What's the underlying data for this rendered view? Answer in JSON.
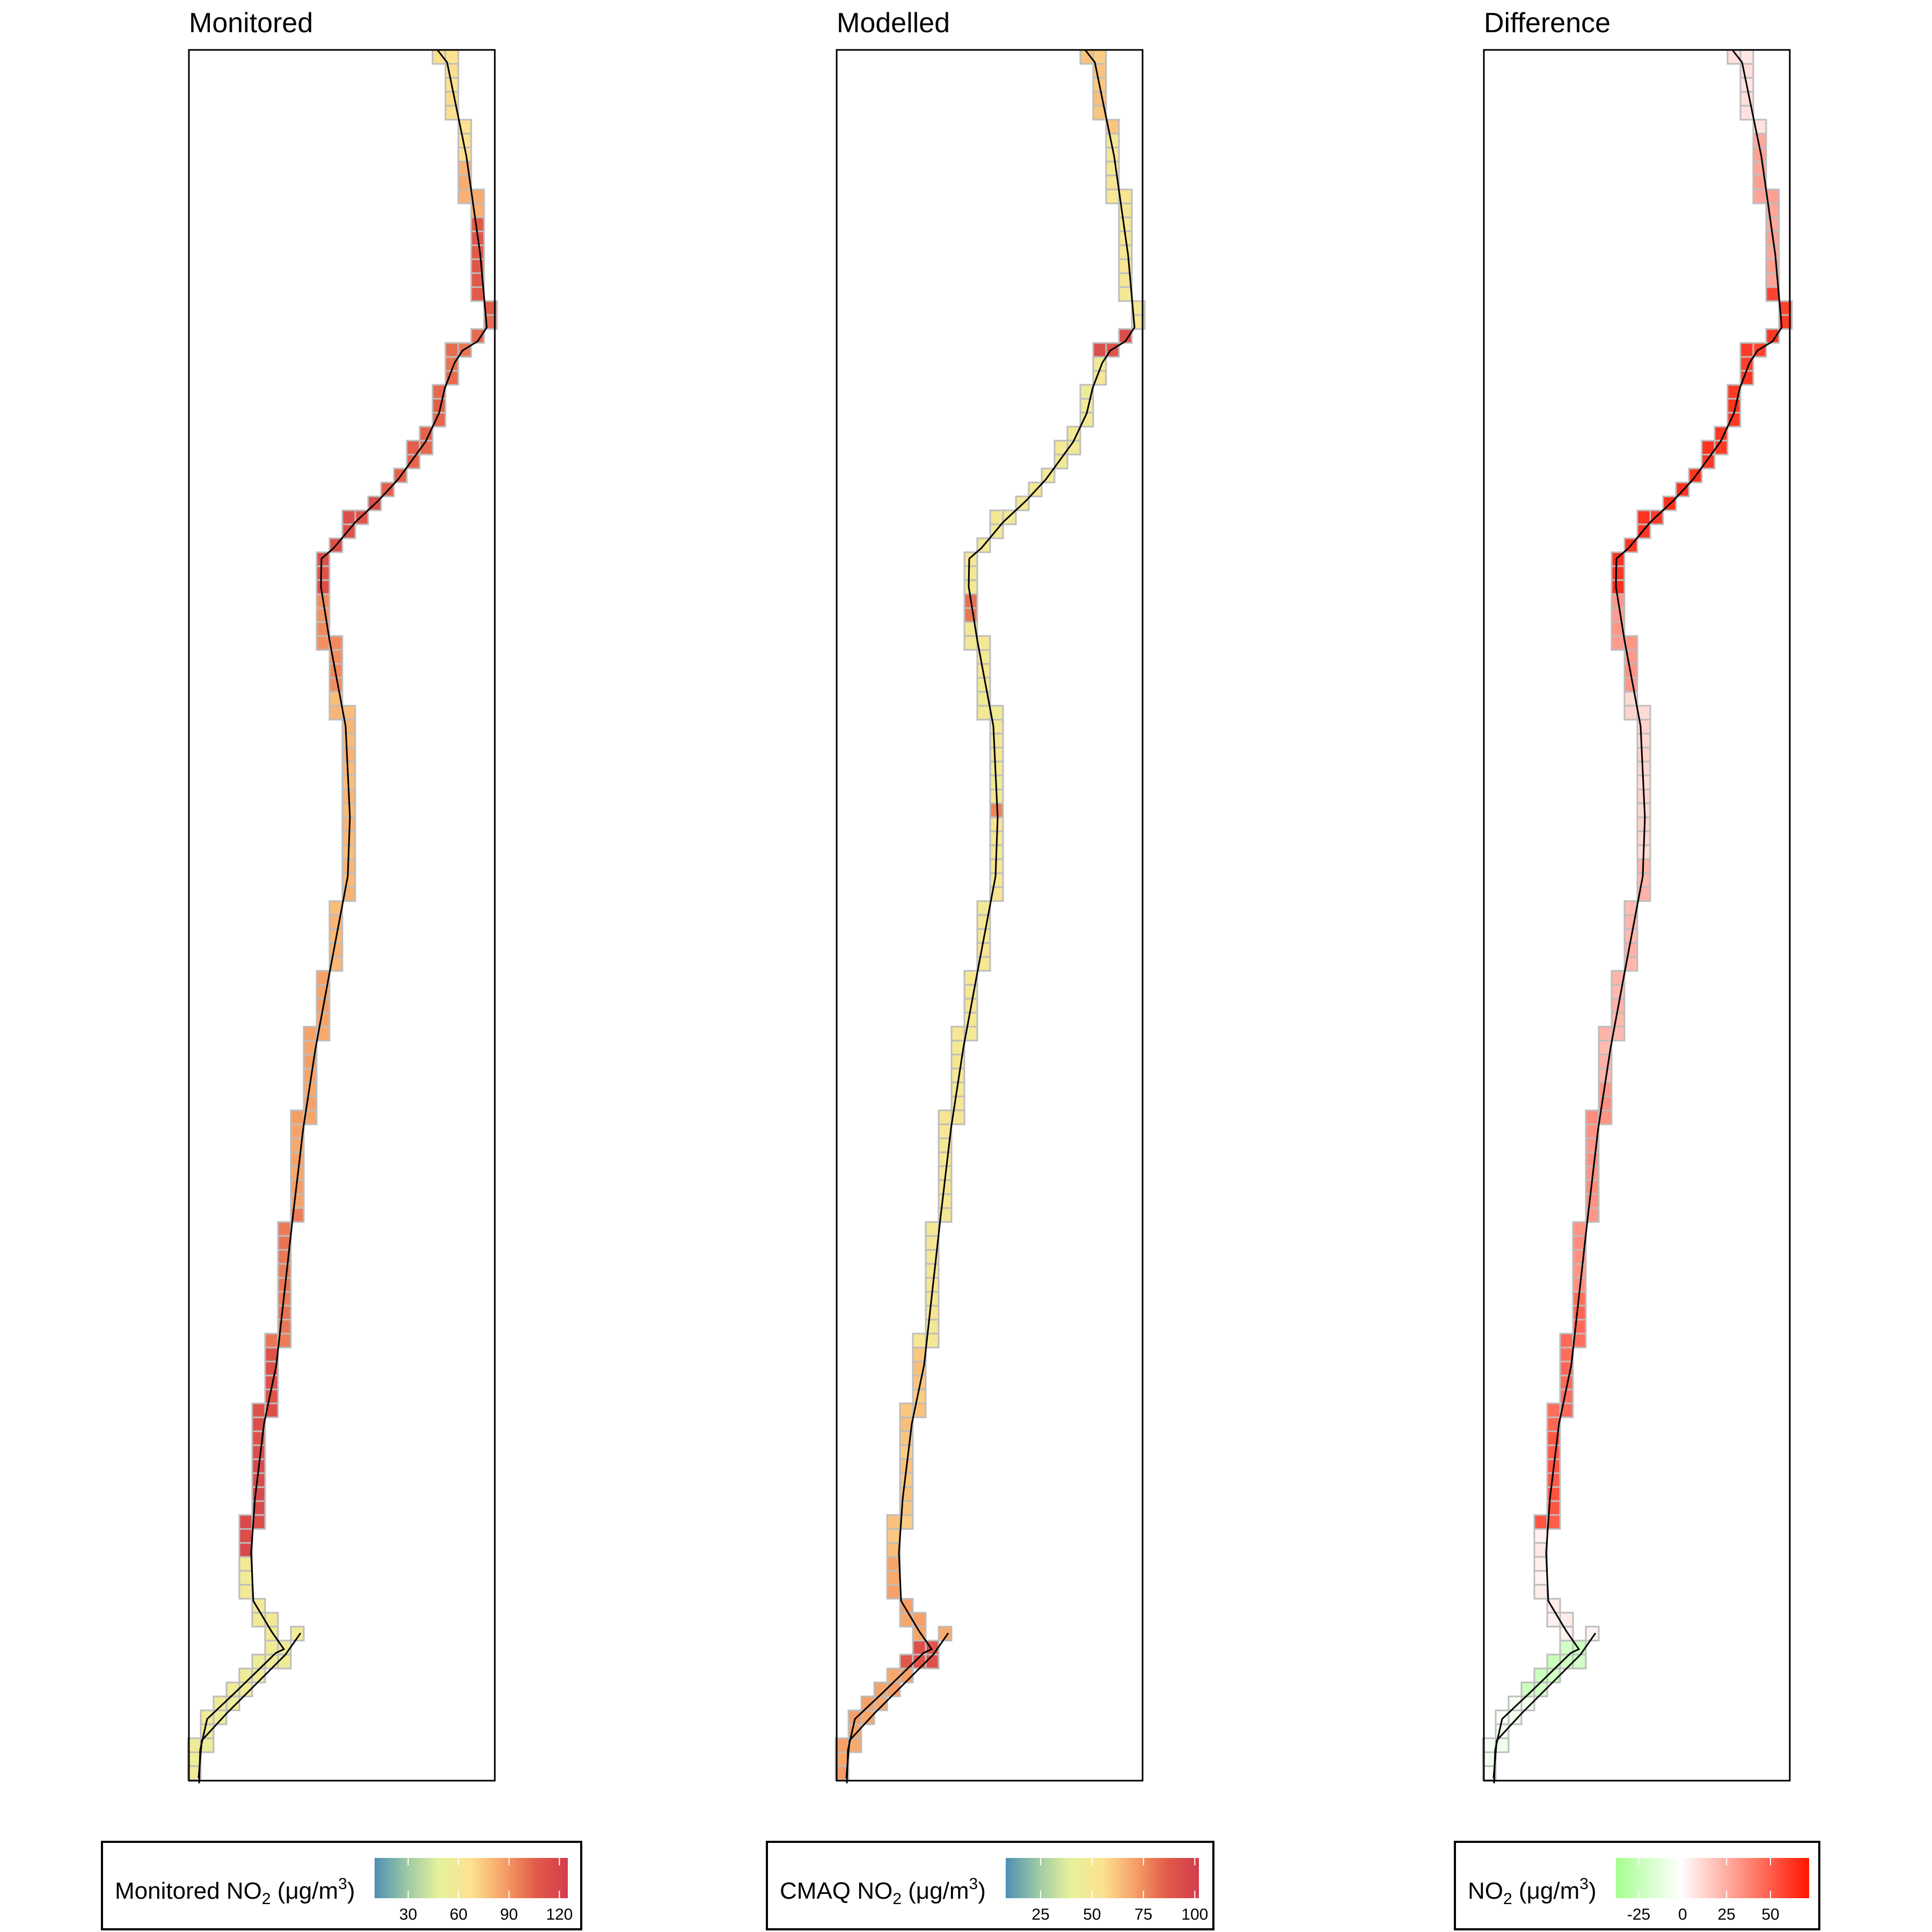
{
  "panels": [
    {
      "title": "Monitored",
      "variable": "monitored",
      "legend": {
        "label_main": "Monitored NO",
        "label_sub": "2",
        "label_units_pre": " (μg/m",
        "label_units_sup": "3",
        "label_units_post": ")",
        "ticks": [
          30,
          60,
          90,
          120
        ],
        "range": [
          10,
          125
        ],
        "colors": [
          "#4f8fb5",
          "#9cc9a4",
          "#e5f19b",
          "#fde291",
          "#f6a168",
          "#e35b48",
          "#d33c4d"
        ]
      }
    },
    {
      "title": "Modelled",
      "variable": "modelled",
      "legend": {
        "label_main": "CMAQ NO",
        "label_sub": "2",
        "label_units_pre": " (μg/m",
        "label_units_sup": "3",
        "label_units_post": ")",
        "ticks": [
          25,
          50,
          75,
          100
        ],
        "range": [
          8,
          102
        ],
        "colors": [
          "#4f8fb5",
          "#9cc9a4",
          "#e5f19b",
          "#fde291",
          "#f6a168",
          "#e35b48",
          "#d33c4d"
        ]
      }
    },
    {
      "title": "Difference",
      "variable": "difference",
      "legend": {
        "label_main": "NO",
        "label_sub": "2",
        "label_units_pre": " (μg/m",
        "label_units_sup": "3",
        "label_units_post": ")",
        "ticks": [
          -25,
          0,
          25,
          50
        ],
        "range": [
          -38,
          72
        ],
        "colors": [
          "#a6ff8f",
          "#ffffff",
          "#ff8d7d",
          "#ff1500"
        ]
      }
    }
  ],
  "route": {
    "description_points": [
      [
        3.0,
        0.0
      ],
      [
        3.25,
        0.55
      ],
      [
        3.55,
        3.9
      ],
      [
        2.7,
        4.3
      ],
      [
        2.3,
        5.5
      ],
      [
        1.75,
        6.7
      ],
      [
        1.05,
        7.2
      ],
      [
        0.95,
        7.55
      ],
      [
        1.25,
        10.75
      ],
      [
        1.35,
        11.3
      ],
      [
        1.15,
        13.5
      ],
      [
        0.8,
        15.3
      ],
      [
        0.6,
        16.5
      ],
      [
        0.45,
        17.3
      ],
      [
        0.35,
        17.9
      ],
      [
        0.05,
        18.7
      ],
      [
        0.05,
        20.8
      ],
      [
        0.4,
        21.6
      ],
      [
        0.6,
        22.4
      ],
      [
        0.5,
        22.75
      ],
      [
        0.85,
        22.9
      ]
    ],
    "lower_spur": [
      [
        0.75,
        22.95
      ],
      [
        0.0,
        23.9
      ],
      [
        -0.05,
        24.4
      ]
    ]
  },
  "cells": [
    {
      "c": 0,
      "r": 0,
      "m": 62,
      "o": 62,
      "d": 6
    },
    {
      "c": 1,
      "r": 0,
      "m": 64,
      "o": 48,
      "d": 8
    },
    {
      "c": 0,
      "r": 1,
      "m": 62,
      "o": 52,
      "d": 6
    },
    {
      "c": 1,
      "r": 1,
      "m": 64,
      "o": 50,
      "d": 8
    },
    {
      "c": 1,
      "r": 2,
      "m": 66,
      "o": 48,
      "d": 14
    },
    {
      "c": 1,
      "r": 3,
      "m": 66,
      "o": 46,
      "d": 14
    },
    {
      "c": 2,
      "r": 4,
      "m": 68,
      "o": 48,
      "d": 15
    },
    {
      "c": 2,
      "r": 5,
      "m": 70,
      "o": 48,
      "d": 18
    },
    {
      "c": 2,
      "r": 6,
      "m": 70,
      "o": 48,
      "d": 18
    },
    {
      "c": 2,
      "r": 7,
      "m": 72,
      "o": 48,
      "d": 20
    },
    {
      "c": 2,
      "r": 8,
      "m": 74,
      "o": 48,
      "d": 22
    },
    {
      "c": 2,
      "r": 9,
      "m": 74,
      "o": 48,
      "d": 22
    },
    {
      "c": 3,
      "r": 10,
      "m": 78,
      "o": 48,
      "d": 25
    },
    {
      "c": 3,
      "r": 11,
      "m": 80,
      "o": 48,
      "d": 28
    },
    {
      "c": 3,
      "r": 12,
      "m": 80,
      "o": 48,
      "d": 28
    },
    {
      "c": 3,
      "r": 13,
      "m": 82,
      "o": 48,
      "d": 30
    },
    {
      "c": 3,
      "r": 14,
      "m": 84,
      "o": 48,
      "d": 32
    },
    {
      "c": 3,
      "r": 15,
      "m": 84,
      "o": 48,
      "d": 32
    },
    {
      "c": 4,
      "r": 16,
      "m": 100,
      "o": 48,
      "d": 50
    },
    {
      "c": 4,
      "r": 17,
      "m": 104,
      "o": 48,
      "d": 54
    },
    {
      "c": 4,
      "r": 18,
      "m": 106,
      "o": 48,
      "d": 58
    },
    {
      "c": 4,
      "r": 19,
      "m": 110,
      "o": 48,
      "d": 60
    },
    {
      "c": 4,
      "r": 20,
      "m": 110,
      "o": 48,
      "d": 60
    },
    {
      "c": 3,
      "r": 20,
      "m": 108,
      "o": 50,
      "d": 58
    },
    {
      "c": 2,
      "r": 20,
      "m": 110,
      "o": 88,
      "d": 56
    },
    {
      "c": 3,
      "r": 21,
      "m": 104,
      "o": 50,
      "d": 52
    },
    {
      "c": 2,
      "r": 21,
      "m": 104,
      "o": 48,
      "d": 52
    },
    {
      "c": 1,
      "r": 22,
      "m": 100,
      "o": 48,
      "d": 50
    },
    {
      "c": 1,
      "r": 23,
      "m": 98,
      "o": 48,
      "d": 48
    },
    {
      "c": 1,
      "r": 24,
      "m": 96,
      "o": 46,
      "d": 46
    },
    {
      "c": 1,
      "r": 25,
      "m": 96,
      "o": 46,
      "d": 46
    },
    {
      "c": 0,
      "r": 26,
      "m": 94,
      "o": 44,
      "d": 46
    },
    {
      "c": 0,
      "r": 27,
      "m": 94,
      "o": 44,
      "d": 46
    },
    {
      "c": 0,
      "r": 28,
      "m": 96,
      "o": 44,
      "d": 48
    },
    {
      "c": -1,
      "r": 28,
      "m": 98,
      "o": 44,
      "d": 50
    },
    {
      "c": -1,
      "r": 29,
      "m": 100,
      "o": 44,
      "d": 54
    },
    {
      "c": -1,
      "r": 30,
      "m": 102,
      "o": 44,
      "d": 54
    },
    {
      "c": -2,
      "r": 30,
      "m": 104,
      "o": 44,
      "d": 56
    },
    {
      "c": -2,
      "r": 31,
      "m": 106,
      "o": 44,
      "d": 58
    },
    {
      "c": -3,
      "r": 31,
      "m": 106,
      "o": 44,
      "d": 60
    },
    {
      "c": -3,
      "r": 32,
      "m": 108,
      "o": 44,
      "d": 62
    },
    {
      "c": -4,
      "r": 32,
      "m": 110,
      "o": 44,
      "d": 64
    },
    {
      "c": -4,
      "r": 33,
      "m": 112,
      "o": 44,
      "d": 64
    },
    {
      "c": -5,
      "r": 33,
      "m": 112,
      "o": 44,
      "d": 66
    },
    {
      "c": -5,
      "r": 34,
      "m": 114,
      "o": 44,
      "d": 66
    },
    {
      "c": -6,
      "r": 34,
      "m": 116,
      "o": 46,
      "d": 66
    },
    {
      "c": -6,
      "r": 35,
      "m": 116,
      "o": 46,
      "d": 68
    },
    {
      "c": -7,
      "r": 35,
      "m": 118,
      "o": 88,
      "d": 70
    }
  ],
  "notes": "cells are drawn relative to the route; visual-only grid cells along the route path"
}
